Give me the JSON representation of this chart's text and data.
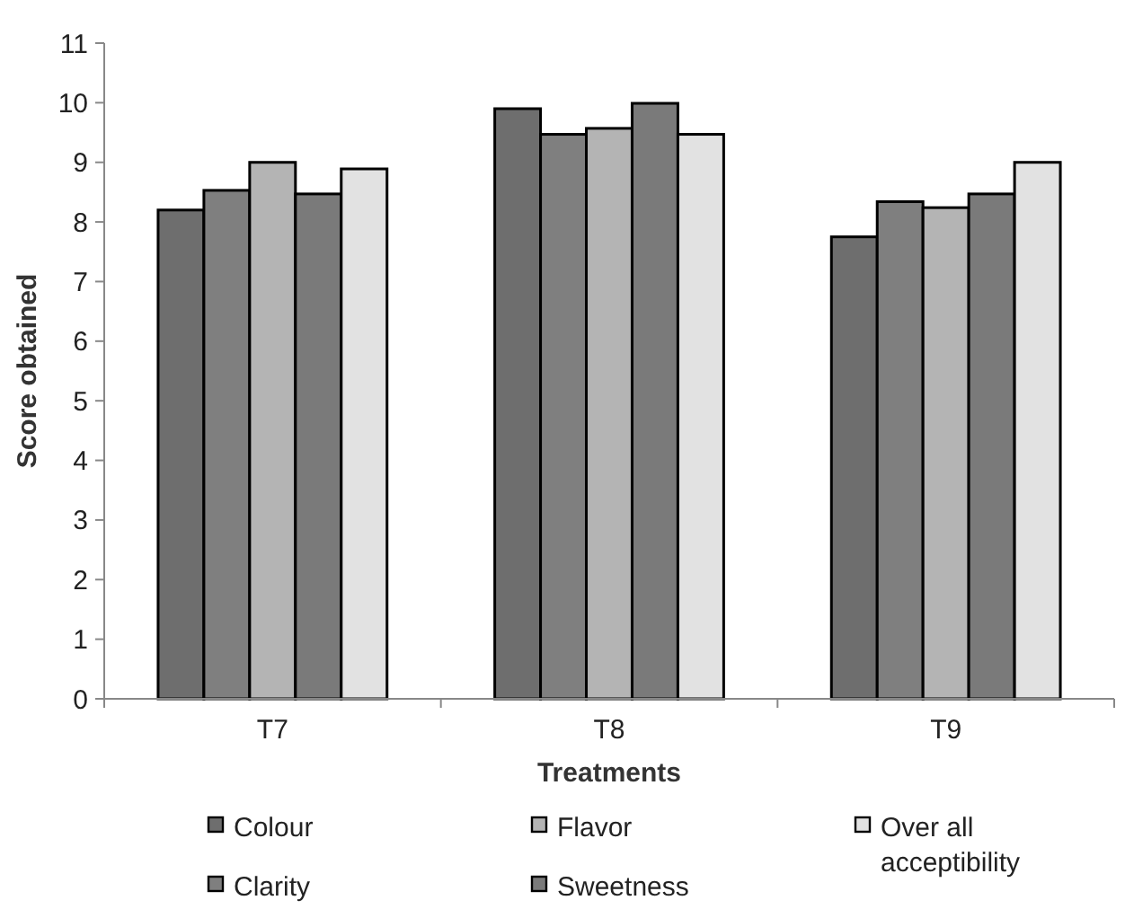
{
  "chart_data": {
    "type": "bar",
    "xlabel": "Treatments",
    "ylabel": "Score obtained",
    "categories": [
      "T7",
      "T8",
      "T9"
    ],
    "series": [
      {
        "name": "Colour",
        "color": "#6e6e6e",
        "values": [
          8.2,
          9.9,
          7.75
        ]
      },
      {
        "name": "Clarity",
        "color": "#7f7f7f",
        "values": [
          8.53,
          9.47,
          8.34
        ]
      },
      {
        "name": "Flavor",
        "color": "#b4b4b4",
        "values": [
          9.0,
          9.57,
          8.24
        ]
      },
      {
        "name": "Sweetness",
        "color": "#7a7a7a",
        "values": [
          8.47,
          9.99,
          8.47
        ]
      },
      {
        "name": "Over all acceptibility",
        "color": "#e2e2e2",
        "values": [
          8.89,
          9.47,
          9.0
        ]
      }
    ],
    "ylim": [
      0,
      11
    ],
    "yticks": [
      0,
      1,
      2,
      3,
      4,
      5,
      6,
      7,
      8,
      9,
      10,
      11
    ],
    "grid": false,
    "legend": "bottom"
  }
}
